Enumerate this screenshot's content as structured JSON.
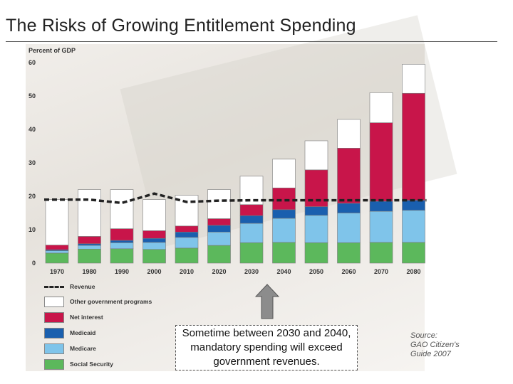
{
  "title": "The Risks of Growing Entitlement Spending",
  "chart_data": {
    "type": "bar",
    "stacked": true,
    "ylabel": "Percent of GDP",
    "ylim": [
      0,
      60
    ],
    "yticks": [
      0,
      10,
      20,
      30,
      40,
      50,
      60
    ],
    "categories": [
      "1970",
      "1980",
      "1990",
      "2000",
      "2010",
      "2020",
      "2030",
      "2040",
      "2050",
      "2060",
      "2070",
      "2080"
    ],
    "series": [
      {
        "name": "Social Security",
        "color": "#5cb85c",
        "values": [
          3.0,
          4.2,
          4.3,
          4.1,
          4.5,
          5.3,
          6.1,
          6.2,
          6.1,
          6.1,
          6.2,
          6.2
        ]
      },
      {
        "name": "Medicare",
        "color": "#7fc4ea",
        "values": [
          0.7,
          1.1,
          1.8,
          2.1,
          3.2,
          4.0,
          5.8,
          7.2,
          8.2,
          8.9,
          9.3,
          9.6
        ]
      },
      {
        "name": "Medicaid",
        "color": "#1a5fae",
        "values": [
          0.3,
          0.5,
          0.7,
          1.2,
          1.6,
          2.0,
          2.3,
          2.6,
          2.6,
          2.9,
          3.0,
          3.0
        ]
      },
      {
        "name": "Net interest",
        "color": "#c8154a",
        "values": [
          1.4,
          2.2,
          3.5,
          2.3,
          1.8,
          2.0,
          3.3,
          6.5,
          11.0,
          16.5,
          23.5,
          32.0
        ]
      },
      {
        "name": "Other government programs",
        "color": "#ffffff",
        "values": [
          13.6,
          14.0,
          11.7,
          9.3,
          9.2,
          8.7,
          8.5,
          8.6,
          8.7,
          8.6,
          9.0,
          8.7
        ]
      }
    ],
    "revenue": {
      "name": "Revenue",
      "values": [
        19.0,
        19.0,
        18.0,
        20.8,
        18.3,
        18.7,
        18.8,
        18.8,
        18.8,
        18.8,
        18.8,
        18.8
      ]
    }
  },
  "legend": {
    "revenue": "Revenue",
    "other": "Other government programs",
    "net_interest": "Net interest",
    "medicaid": "Medicaid",
    "medicare": "Medicare",
    "social_security": "Social Security"
  },
  "colors": {
    "other": "#ffffff",
    "net_interest": "#c8154a",
    "medicaid": "#1a5fae",
    "medicare": "#7fc4ea",
    "social_security": "#5cb85c",
    "arrow": "#8c8c8c"
  },
  "callout": "Sometime between 2030 and 2040, mandatory spending will exceed government revenues.",
  "source": {
    "line1": "Source:",
    "line2": "GAO Citizen's",
    "line3": "Guide 2007"
  }
}
